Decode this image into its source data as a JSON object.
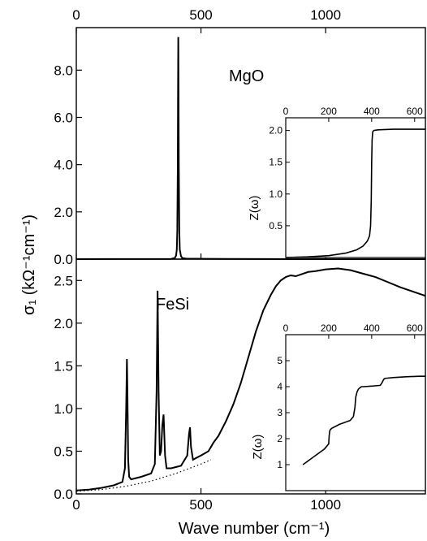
{
  "chart_data": [
    {
      "type": "line",
      "panel": "top",
      "annotation": "MgO",
      "xlim": [
        0,
        1400
      ],
      "ylim": [
        0,
        9.8
      ],
      "x_ticks": [
        0,
        500,
        1000
      ],
      "x_tick_labels": [
        "0",
        "500",
        "1000"
      ],
      "x_tick_position": "top",
      "y_ticks": [
        0,
        2,
        4,
        6,
        8
      ],
      "y_tick_labels": [
        "0.0",
        "2.0",
        "4.0",
        "6.0",
        "8.0"
      ],
      "series": [
        {
          "style": "solid",
          "x": [
            0,
            380,
            395,
            400,
            403,
            405,
            407,
            408,
            409,
            410,
            411,
            413,
            415,
            420,
            425,
            440,
            600,
            1000,
            1400
          ],
          "y": [
            0,
            0.01,
            0.05,
            0.15,
            0.4,
            1.2,
            4.0,
            7.0,
            9.4,
            7.0,
            4.0,
            1.2,
            0.4,
            0.12,
            0.05,
            0.02,
            0.01,
            0,
            0
          ]
        }
      ],
      "inset": {
        "ylabel": "Z(ω)",
        "xlim": [
          0,
          650
        ],
        "ylim": [
          0,
          2.2
        ],
        "x_ticks": [
          0,
          200,
          400,
          600
        ],
        "x_tick_labels": [
          "0",
          "200",
          "400",
          "600"
        ],
        "y_ticks": [
          0.5,
          1.0,
          1.5,
          2.0
        ],
        "y_tick_labels": [
          "0.5",
          "1.0",
          "1.5",
          "2.0"
        ],
        "series": [
          {
            "style": "solid",
            "x": [
              0,
              100,
              200,
              280,
              330,
              360,
              380,
              390,
              395,
              398,
              400,
              402,
              405,
              410,
              430,
              500,
              650
            ],
            "y": [
              0,
              0.01,
              0.03,
              0.07,
              0.12,
              0.18,
              0.26,
              0.34,
              0.5,
              0.9,
              1.5,
              1.85,
              1.98,
              2.0,
              2.01,
              2.02,
              2.02
            ]
          }
        ]
      }
    },
    {
      "type": "line",
      "panel": "bottom",
      "annotation": "FeSi",
      "xlabel": "Wave number   (cm⁻¹)",
      "ylabel": "σ₁  (kΩ⁻¹cm⁻¹)",
      "xlim": [
        0,
        1400
      ],
      "ylim": [
        0,
        2.75
      ],
      "x_ticks": [
        0,
        500,
        1000
      ],
      "x_tick_labels": [
        "0",
        "500",
        "1000"
      ],
      "y_ticks": [
        0,
        0.5,
        1.0,
        1.5,
        2.0,
        2.5
      ],
      "y_tick_labels": [
        "0.0",
        "0.5",
        "1.0",
        "1.5",
        "2.0",
        "2.5"
      ],
      "series": [
        {
          "style": "solid",
          "x": [
            0,
            50,
            100,
            150,
            185,
            195,
            200,
            203,
            205,
            208,
            212,
            220,
            260,
            300,
            315,
            322,
            326,
            330,
            335,
            340,
            345,
            350,
            356,
            362,
            380,
            420,
            445,
            452,
            456,
            460,
            468,
            480,
            500,
            530,
            550,
            570,
            600,
            630,
            660,
            690,
            720,
            750,
            780,
            800,
            820,
            840,
            860,
            880,
            900,
            930,
            960,
            1000,
            1050,
            1100,
            1150,
            1200,
            1250,
            1300,
            1350,
            1400
          ],
          "y": [
            0.04,
            0.05,
            0.07,
            0.1,
            0.14,
            0.3,
            1.0,
            1.58,
            1.2,
            0.4,
            0.2,
            0.17,
            0.2,
            0.24,
            0.35,
            1.2,
            2.38,
            1.2,
            0.45,
            0.5,
            0.8,
            0.93,
            0.45,
            0.3,
            0.3,
            0.33,
            0.45,
            0.7,
            0.78,
            0.55,
            0.4,
            0.42,
            0.45,
            0.5,
            0.6,
            0.68,
            0.85,
            1.05,
            1.3,
            1.6,
            1.9,
            2.15,
            2.33,
            2.43,
            2.5,
            2.54,
            2.56,
            2.55,
            2.57,
            2.6,
            2.61,
            2.63,
            2.64,
            2.62,
            2.58,
            2.54,
            2.48,
            2.42,
            2.37,
            2.32
          ]
        },
        {
          "style": "dotted",
          "x": [
            0,
            100,
            200,
            300,
            400,
            500,
            540
          ],
          "y": [
            0.03,
            0.05,
            0.09,
            0.15,
            0.24,
            0.35,
            0.4
          ]
        }
      ],
      "inset": {
        "ylabel": "Z(ω)",
        "xlim": [
          0,
          650
        ],
        "ylim": [
          0,
          6
        ],
        "x_ticks": [
          0,
          200,
          400,
          600
        ],
        "x_tick_labels": [
          "0",
          "200",
          "400",
          "600"
        ],
        "y_ticks": [
          1,
          2,
          3,
          4,
          5
        ],
        "y_tick_labels": [
          "1",
          "2",
          "3",
          "4",
          "5"
        ],
        "series": [
          {
            "style": "solid",
            "x": [
              80,
              130,
              180,
              200,
              202,
              205,
              208,
              215,
              250,
              300,
              315,
              322,
              326,
              332,
              338,
              344,
              348,
              352,
              356,
              362,
              400,
              440,
              448,
              454,
              458,
              464,
              500,
              560,
              620,
              650
            ],
            "y": [
              1.0,
              1.3,
              1.6,
              1.8,
              2.1,
              2.3,
              2.35,
              2.4,
              2.55,
              2.7,
              2.85,
              3.2,
              3.6,
              3.8,
              3.9,
              3.95,
              3.97,
              4.0,
              4.0,
              4.0,
              4.02,
              4.05,
              4.15,
              4.25,
              4.3,
              4.32,
              4.35,
              4.38,
              4.4,
              4.4
            ]
          }
        ]
      }
    }
  ]
}
